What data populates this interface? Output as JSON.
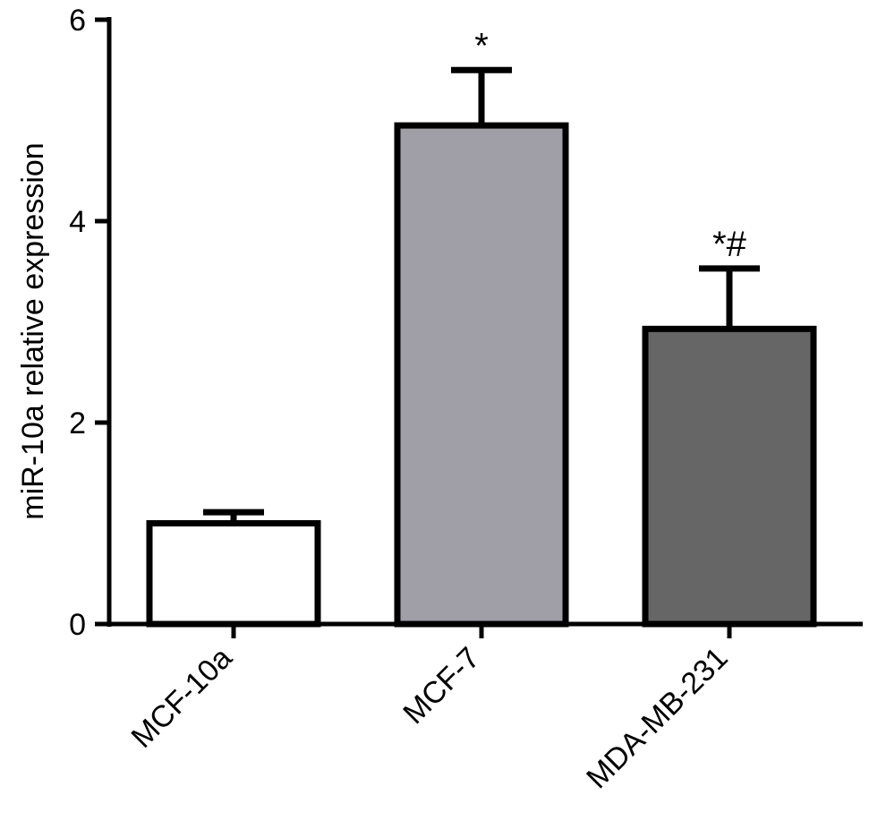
{
  "chart_data": {
    "type": "bar",
    "categories": [
      "MCF-10a",
      "MCF-7",
      "MDA-MB-231"
    ],
    "values": [
      1.0,
      4.95,
      2.93
    ],
    "errors": [
      0.11,
      0.55,
      0.6
    ],
    "annotations": [
      "",
      "*",
      "*#"
    ],
    "bar_colors": [
      "#ffffff",
      "#a09fa7",
      "#666666"
    ],
    "ylabel": "miR-10a relative expression",
    "xlabel": "",
    "title": "",
    "ylim": [
      0,
      6
    ],
    "yticks": [
      0,
      2,
      4,
      6
    ],
    "ytick_labels": [
      "0",
      "2",
      "4",
      "6"
    ],
    "grid": false,
    "legend": "none"
  }
}
